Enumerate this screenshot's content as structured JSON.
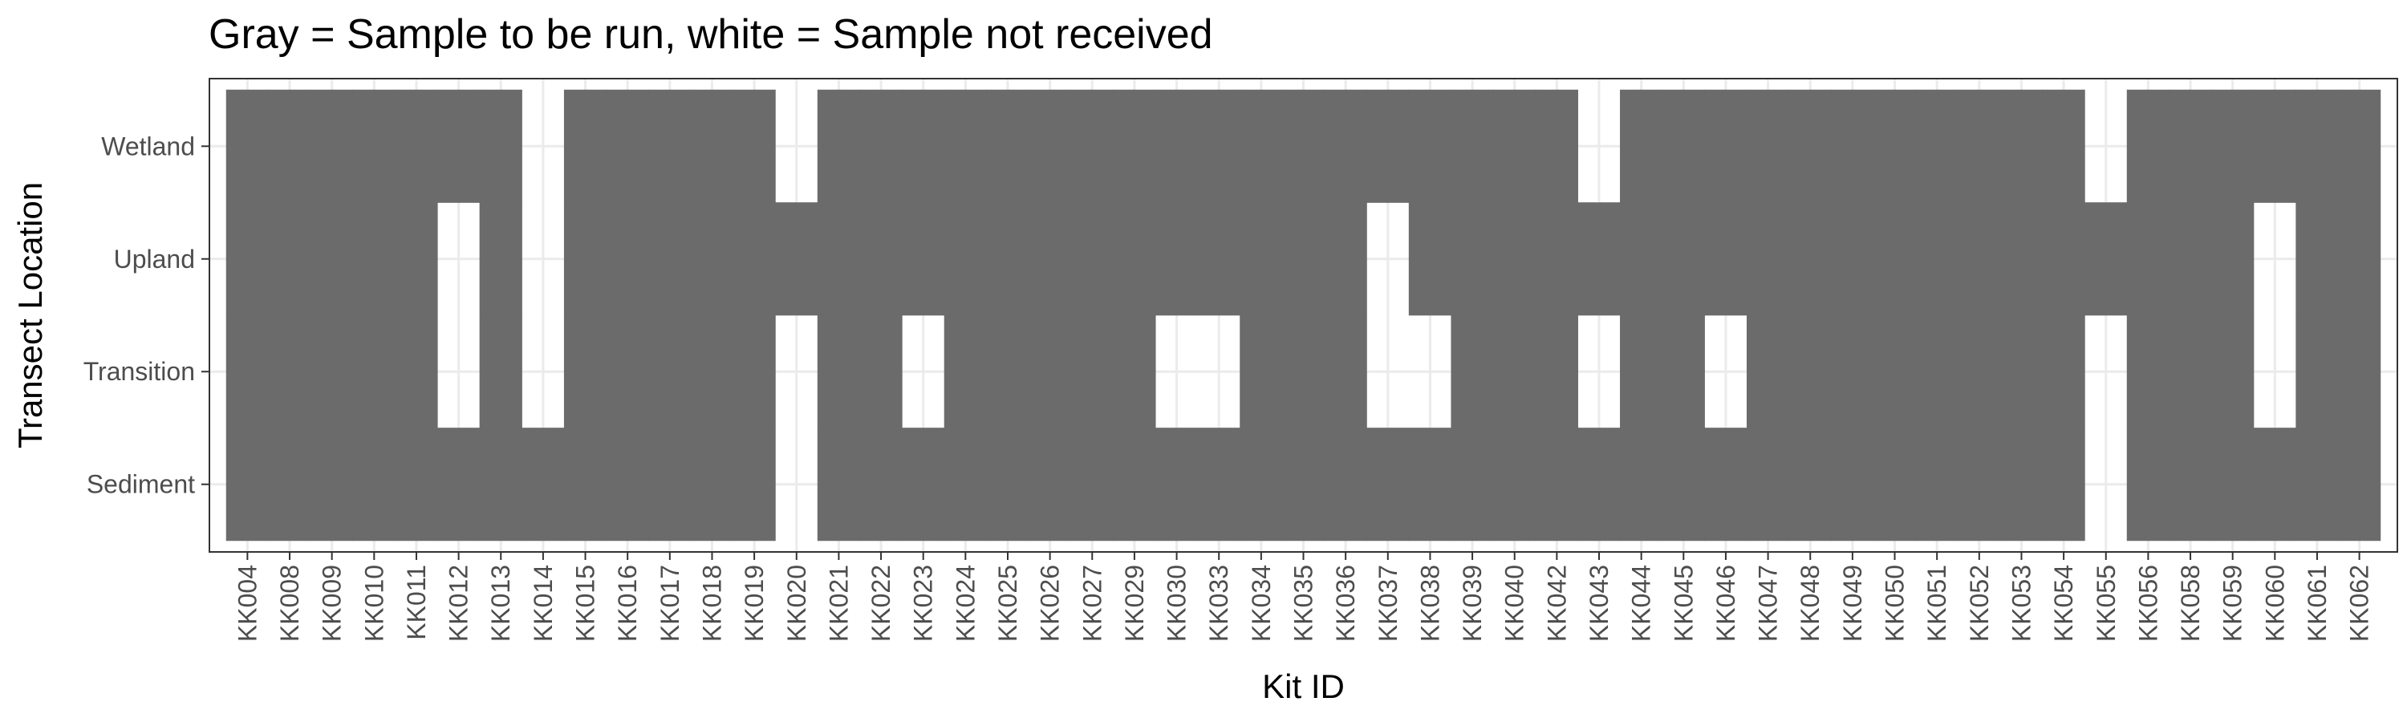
{
  "chart_data": {
    "type": "heatmap",
    "title": "Gray = Sample to be run, white = Sample not received",
    "xlabel": "Kit ID",
    "ylabel": "Transect Location",
    "categories": [
      "KK004",
      "KK008",
      "KK009",
      "KK010",
      "KK011",
      "KK012",
      "KK013",
      "KK014",
      "KK015",
      "KK016",
      "KK017",
      "KK018",
      "KK019",
      "KK020",
      "KK021",
      "KK022",
      "KK023",
      "KK024",
      "KK025",
      "KK026",
      "KK027",
      "KK029",
      "KK030",
      "KK033",
      "KK034",
      "KK035",
      "KK036",
      "KK037",
      "KK038",
      "KK039",
      "KK040",
      "KK042",
      "KK043",
      "KK044",
      "KK045",
      "KK046",
      "KK047",
      "KK048",
      "KK049",
      "KK050",
      "KK051",
      "KK052",
      "KK053",
      "KK054",
      "KK055",
      "KK056",
      "KK058",
      "KK059",
      "KK060",
      "KK061",
      "KK062"
    ],
    "rows": [
      "Wetland",
      "Upland",
      "Transition",
      "Sediment"
    ],
    "missing": {
      "Wetland": [
        "KK014",
        "KK020",
        "KK043",
        "KK055"
      ],
      "Upland": [
        "KK012",
        "KK014",
        "KK037",
        "KK060"
      ],
      "Transition": [
        "KK012",
        "KK014",
        "KK020",
        "KK023",
        "KK030",
        "KK033",
        "KK037",
        "KK038",
        "KK043",
        "KK046",
        "KK055",
        "KK060"
      ],
      "Sediment": [
        "KK020",
        "KK055"
      ]
    },
    "colors": {
      "present": "#6b6b6b",
      "missing": "#ffffff",
      "grid": "#ebebeb",
      "border": "#333333",
      "axis_text": "#4d4d4d"
    },
    "grid": true,
    "legend": "none"
  }
}
